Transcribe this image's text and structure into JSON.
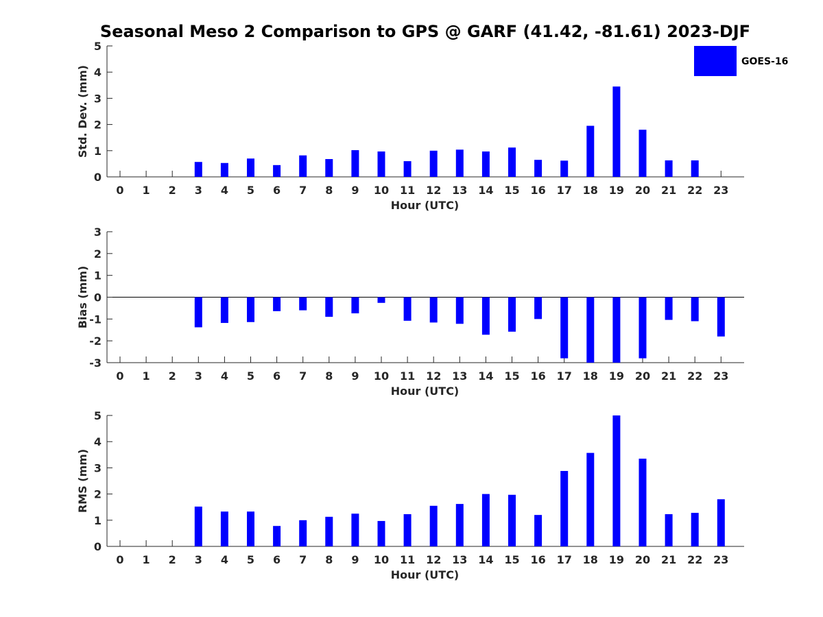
{
  "chart_data": {
    "title": "Seasonal Meso 2 Comparison to GPS @ GARF (41.42, -81.61) 2023-DJF",
    "legend": {
      "label": "GOES-16",
      "color": "#0000ff",
      "placement": "top-right"
    },
    "bar_color": "#0000ff",
    "panels": [
      {
        "type": "bar",
        "xlabel": "Hour (UTC)",
        "ylabel": "Std. Dev. (mm)",
        "ylim": [
          0,
          5
        ],
        "yticks": [
          "0",
          "1",
          "2",
          "3",
          "4",
          "5"
        ],
        "categories": [
          "0",
          "1",
          "2",
          "3",
          "4",
          "5",
          "6",
          "7",
          "8",
          "9",
          "10",
          "11",
          "12",
          "13",
          "14",
          "15",
          "16",
          "17",
          "18",
          "19",
          "20",
          "21",
          "22",
          "23"
        ],
        "series": [
          {
            "name": "GOES-16",
            "values": [
              0,
              0,
              0,
              0.57,
              0.53,
              0.7,
              0.45,
              0.82,
              0.68,
              1.02,
              0.97,
              0.6,
              1.0,
              1.04,
              0.97,
              1.12,
              0.65,
              0.62,
              1.95,
              3.45,
              1.8,
              0.63,
              0.63,
              0
            ]
          }
        ]
      },
      {
        "type": "bar",
        "xlabel": "Hour (UTC)",
        "ylabel": "Bias (mm)",
        "ylim": [
          -3,
          3
        ],
        "yticks": [
          "-3",
          "-2",
          "-1",
          "0",
          "1",
          "2",
          "3"
        ],
        "categories": [
          "0",
          "1",
          "2",
          "3",
          "4",
          "5",
          "6",
          "7",
          "8",
          "9",
          "10",
          "11",
          "12",
          "13",
          "14",
          "15",
          "16",
          "17",
          "18",
          "19",
          "20",
          "21",
          "22",
          "23"
        ],
        "series": [
          {
            "name": "GOES-16",
            "values": [
              0,
              0,
              0,
              -1.38,
              -1.18,
              -1.14,
              -0.64,
              -0.6,
              -0.9,
              -0.74,
              -0.26,
              -1.08,
              -1.16,
              -1.22,
              -1.72,
              -1.58,
              -1.0,
              -2.8,
              -3.0,
              -3.0,
              -2.8,
              -1.04,
              -1.1,
              -1.8
            ]
          }
        ]
      },
      {
        "type": "bar",
        "xlabel": "Hour (UTC)",
        "ylabel": "RMS (mm)",
        "ylim": [
          0,
          5
        ],
        "yticks": [
          "0",
          "1",
          "2",
          "3",
          "4",
          "5"
        ],
        "categories": [
          "0",
          "1",
          "2",
          "3",
          "4",
          "5",
          "6",
          "7",
          "8",
          "9",
          "10",
          "11",
          "12",
          "13",
          "14",
          "15",
          "16",
          "17",
          "18",
          "19",
          "20",
          "21",
          "22",
          "23"
        ],
        "series": [
          {
            "name": "GOES-16",
            "values": [
              0,
              0,
              0,
              1.52,
              1.33,
              1.33,
              0.78,
              1.0,
              1.13,
              1.25,
              0.97,
              1.23,
              1.55,
              1.62,
              2.0,
              1.97,
              1.2,
              2.88,
              3.57,
              5.0,
              3.35,
              1.23,
              1.28,
              1.8
            ]
          }
        ]
      }
    ]
  }
}
